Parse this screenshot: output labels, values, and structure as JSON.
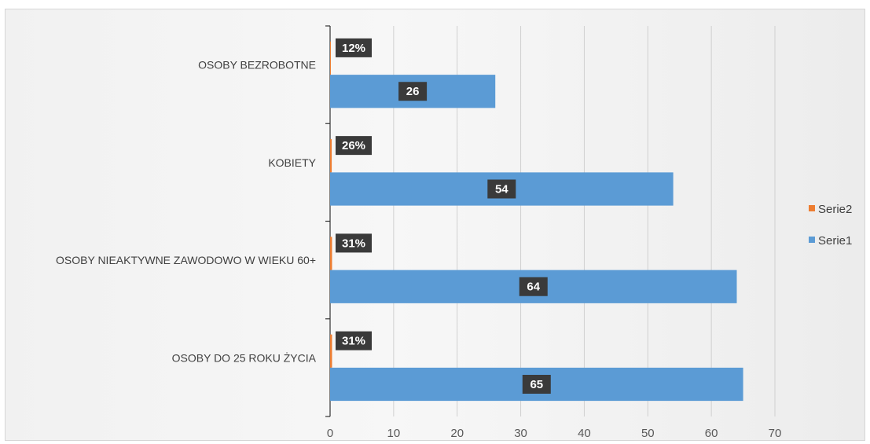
{
  "chart_data": {
    "type": "bar",
    "orientation": "horizontal",
    "categories": [
      "OSOBY DO 25 ROKU ŻYCIA",
      "OSOBY NIEAKTYWNE ZAWODOWO W WIEKU 60+",
      "KOBIETY",
      "OSOBY BEZROBOTNE"
    ],
    "series": [
      {
        "name": "Serie1",
        "color": "#5b9bd5",
        "values": [
          65,
          64,
          54,
          26
        ],
        "labels": [
          "65",
          "64",
          "54",
          "26"
        ]
      },
      {
        "name": "Serie2",
        "color": "#ed7d31",
        "values": [
          0.31,
          0.31,
          0.26,
          0.12
        ],
        "labels": [
          "31%",
          "31%",
          "26%",
          "12%"
        ]
      }
    ],
    "xlim": [
      0,
      70
    ],
    "xticks": [
      "0",
      "10",
      "20",
      "30",
      "40",
      "50",
      "60",
      "70"
    ],
    "grid": true,
    "legend_position": "right",
    "legend_order": [
      "Serie2",
      "Serie1"
    ]
  }
}
